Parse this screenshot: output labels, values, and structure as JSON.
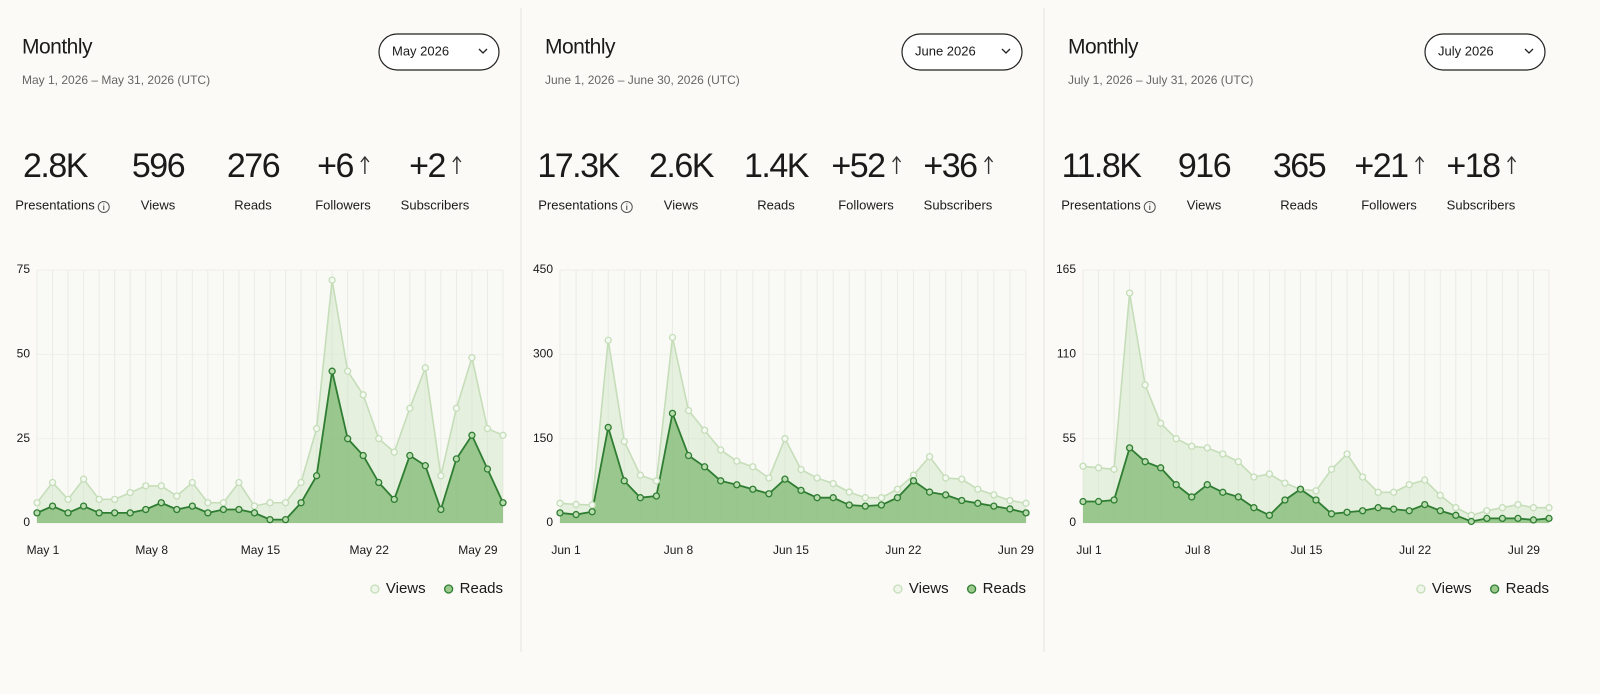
{
  "panels": [
    {
      "title": "Monthly",
      "date_range": "May 1, 2026 – May 31, 2026 (UTC)",
      "dropdown": "May 2026",
      "stats": [
        {
          "value": "2.8K",
          "label": "Presentations"
        },
        {
          "value": "596",
          "label": "Views"
        },
        {
          "value": "276",
          "label": "Reads"
        },
        {
          "value": "+6",
          "label": "Followers"
        },
        {
          "value": "+2",
          "label": "Subscribers"
        }
      ],
      "chart_data": {
        "type": "line",
        "categories": [
          "May 1",
          null,
          null,
          null,
          null,
          null,
          null,
          "May 8",
          null,
          null,
          null,
          null,
          null,
          null,
          "May 15",
          null,
          null,
          null,
          null,
          null,
          null,
          "May 22",
          null,
          null,
          null,
          null,
          null,
          null,
          "May 29",
          null,
          null
        ],
        "series": [
          {
            "name": "Views",
            "color": "#c5deb9",
            "values": [
              6,
              12,
              7,
              13,
              7,
              7,
              9,
              11,
              11,
              8,
              12,
              6,
              6,
              12,
              5,
              6,
              6,
              12,
              28,
              72,
              45,
              38,
              25,
              21,
              34,
              46,
              14,
              34,
              49,
              28,
              26
            ]
          },
          {
            "name": "Reads",
            "color": "#2f7d32",
            "values": [
              3,
              5,
              3,
              5,
              3,
              3,
              3,
              4,
              6,
              4,
              5,
              3,
              4,
              4,
              3,
              1,
              1,
              6,
              14,
              45,
              25,
              20,
              12,
              7,
              20,
              17,
              4,
              19,
              26,
              16,
              6
            ]
          }
        ],
        "ylim": [
          0,
          75
        ],
        "yticks": [
          0,
          25,
          50,
          75
        ],
        "legend": "bottom-right"
      }
    },
    {
      "title": "Monthly",
      "date_range": "June 1, 2026 – June 30, 2026 (UTC)",
      "dropdown": "June 2026",
      "stats": [
        {
          "value": "17.3K",
          "label": "Presentations"
        },
        {
          "value": "2.6K",
          "label": "Views"
        },
        {
          "value": "1.4K",
          "label": "Reads"
        },
        {
          "value": "+52",
          "label": "Followers"
        },
        {
          "value": "+36",
          "label": "Subscribers"
        }
      ],
      "chart_data": {
        "type": "line",
        "categories": [
          "Jun 1",
          null,
          null,
          null,
          null,
          null,
          null,
          "Jun 8",
          null,
          null,
          null,
          null,
          null,
          null,
          "Jun 15",
          null,
          null,
          null,
          null,
          null,
          null,
          "Jun 22",
          null,
          null,
          null,
          null,
          null,
          null,
          "Jun 29",
          null
        ],
        "series": [
          {
            "name": "Views",
            "color": "#c5deb9",
            "values": [
              35,
              33,
              32,
              325,
              145,
              85,
              75,
              330,
              200,
              165,
              130,
              110,
              100,
              80,
              150,
              95,
              80,
              70,
              55,
              45,
              45,
              60,
              85,
              118,
              80,
              78,
              60,
              50,
              40,
              35
            ]
          },
          {
            "name": "Reads",
            "color": "#2f7d32",
            "values": [
              18,
              15,
              20,
              170,
              75,
              45,
              48,
              195,
              120,
              100,
              75,
              68,
              60,
              52,
              78,
              58,
              45,
              45,
              32,
              30,
              32,
              45,
              75,
              55,
              50,
              40,
              35,
              30,
              25,
              18
            ]
          }
        ],
        "ylim": [
          0,
          450
        ],
        "yticks": [
          0,
          150,
          300,
          450
        ],
        "legend": "bottom-right"
      }
    },
    {
      "title": "Monthly",
      "date_range": "July 1, 2026 – July 31, 2026 (UTC)",
      "dropdown": "July 2026",
      "stats": [
        {
          "value": "11.8K",
          "label": "Presentations"
        },
        {
          "value": "916",
          "label": "Views"
        },
        {
          "value": "365",
          "label": "Reads"
        },
        {
          "value": "+21",
          "label": "Followers"
        },
        {
          "value": "+18",
          "label": "Subscribers"
        }
      ],
      "chart_data": {
        "type": "line",
        "categories": [
          "Jul 1",
          null,
          null,
          null,
          null,
          null,
          null,
          "Jul 8",
          null,
          null,
          null,
          null,
          null,
          null,
          "Jul 15",
          null,
          null,
          null,
          null,
          null,
          null,
          "Jul 22",
          null,
          null,
          null,
          null,
          null,
          null,
          "Jul 29",
          null,
          null
        ],
        "series": [
          {
            "name": "Views",
            "color": "#c5deb9",
            "values": [
              37,
              36,
              35,
              150,
              90,
              65,
              55,
              50,
              49,
              45,
              40,
              30,
              32,
              26,
              22,
              21,
              35,
              45,
              30,
              20,
              20,
              25,
              28,
              18,
              10,
              5,
              8,
              10,
              12,
              10,
              10
            ]
          },
          {
            "name": "Reads",
            "color": "#2f7d32",
            "values": [
              14,
              14,
              15,
              49,
              40,
              36,
              25,
              17,
              25,
              20,
              17,
              10,
              5,
              15,
              22,
              15,
              6,
              7,
              8,
              10,
              9,
              8,
              12,
              8,
              5,
              1,
              3,
              3,
              3,
              2,
              3
            ]
          }
        ],
        "ylim": [
          0,
          165
        ],
        "yticks": [
          0,
          55,
          110,
          165
        ],
        "legend": "bottom-right"
      }
    }
  ]
}
